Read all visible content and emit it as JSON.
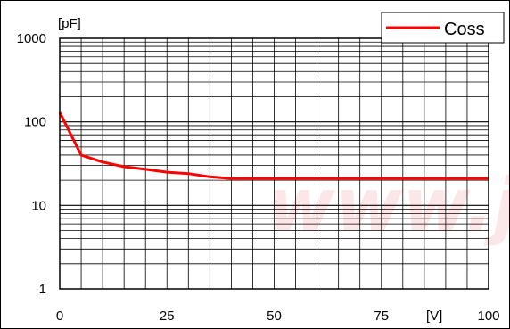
{
  "chart_data": {
    "type": "line",
    "title": "",
    "xlabel": "[V]",
    "ylabel": "[pF]",
    "xlim": [
      0,
      100
    ],
    "ylim": [
      1,
      1000
    ],
    "y_scale": "log",
    "grid": true,
    "legend_position": "top-right",
    "x_ticks": [
      0,
      25,
      50,
      75,
      100
    ],
    "y_ticks": [
      1,
      10,
      100,
      1000
    ],
    "x_tick_labels": [
      "0",
      "25",
      "50",
      "75",
      "100"
    ],
    "y_tick_labels": [
      "1",
      "10",
      "100",
      "1000"
    ],
    "series": [
      {
        "name": "Coss",
        "color": "#ff0000",
        "x": [
          0,
          5,
          10,
          15,
          20,
          25,
          30,
          35,
          40,
          45,
          50,
          55,
          60,
          65,
          70,
          75,
          80,
          85,
          90,
          95,
          100
        ],
        "y": [
          130,
          40,
          33,
          29,
          27,
          25,
          24,
          22,
          21,
          21,
          21,
          21,
          21,
          21,
          21,
          21,
          21,
          21,
          21,
          21,
          21
        ]
      }
    ]
  },
  "watermark": {
    "text": "www.ji",
    "color": "#e60012"
  }
}
